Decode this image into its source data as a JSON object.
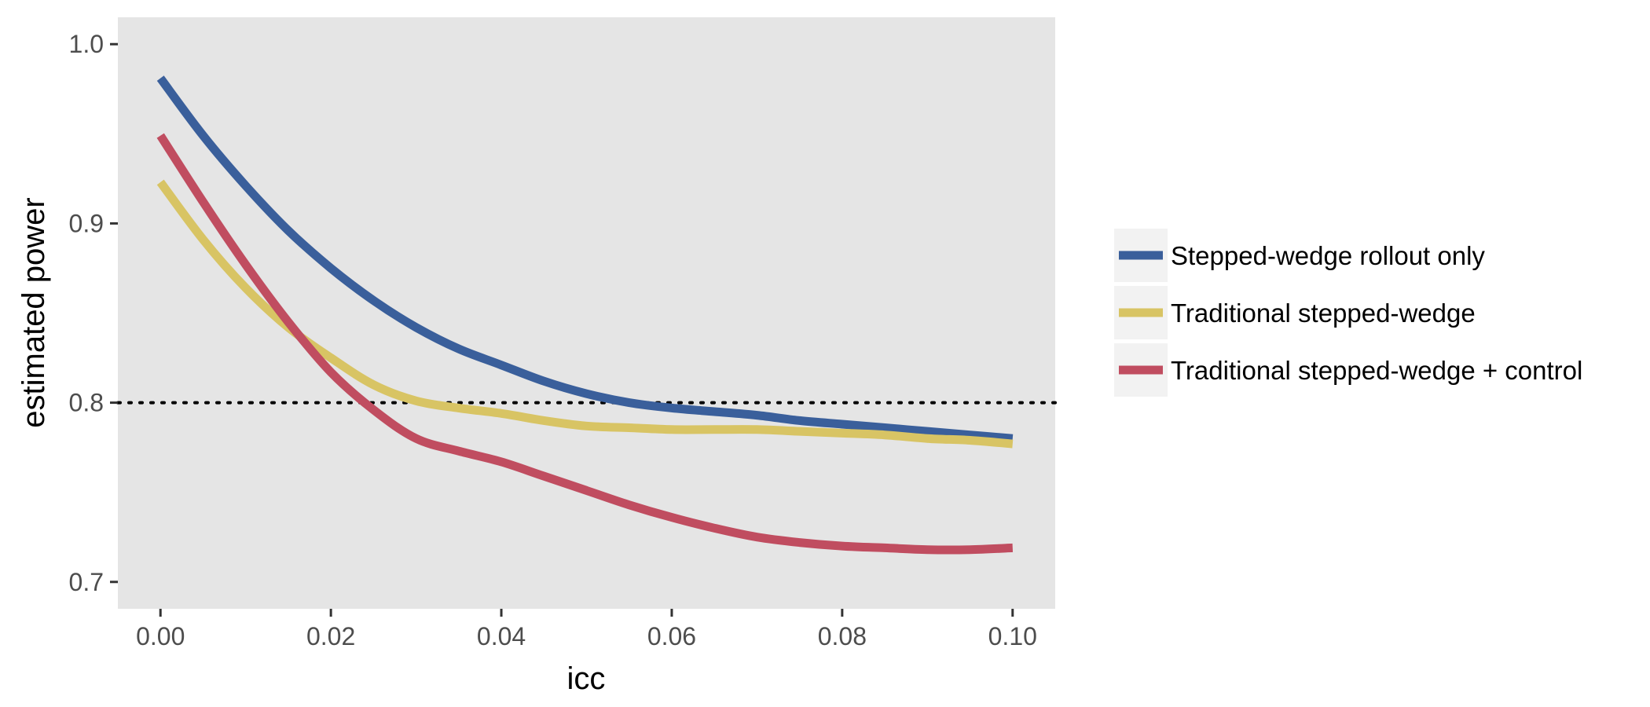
{
  "chart_data": {
    "type": "line",
    "title": "",
    "xlabel": "icc",
    "ylabel": "estimated power",
    "xlim": [
      -0.005,
      0.105
    ],
    "ylim": [
      0.685,
      1.015
    ],
    "x_ticks": [
      0.0,
      0.02,
      0.04,
      0.06,
      0.08,
      0.1
    ],
    "x_tick_labels": [
      "0.00",
      "0.02",
      "0.04",
      "0.06",
      "0.08",
      "0.10"
    ],
    "y_ticks": [
      0.7,
      0.8,
      0.9,
      1.0
    ],
    "y_tick_labels": [
      "0.7",
      "0.8",
      "0.9",
      "1.0"
    ],
    "grid": false,
    "panel_background": "#E5E5E5",
    "legend_position": "right",
    "reference_line": {
      "y": 0.8,
      "style": "dotted",
      "color": "#000000"
    },
    "series": [
      {
        "name": "Stepped-wedge rollout only",
        "color": "#3A5F9B",
        "x": [
          0.0,
          0.005,
          0.01,
          0.015,
          0.02,
          0.025,
          0.03,
          0.035,
          0.04,
          0.045,
          0.05,
          0.055,
          0.06,
          0.065,
          0.07,
          0.075,
          0.08,
          0.085,
          0.09,
          0.095,
          0.1
        ],
        "y": [
          0.981,
          0.949,
          0.921,
          0.896,
          0.875,
          0.857,
          0.842,
          0.83,
          0.821,
          0.812,
          0.805,
          0.8,
          0.797,
          0.795,
          0.793,
          0.79,
          0.788,
          0.786,
          0.784,
          0.782,
          0.78
        ]
      },
      {
        "name": "Traditional stepped-wedge",
        "color": "#D8C464",
        "x": [
          0.0,
          0.005,
          0.01,
          0.015,
          0.02,
          0.025,
          0.03,
          0.035,
          0.04,
          0.045,
          0.05,
          0.055,
          0.06,
          0.065,
          0.07,
          0.075,
          0.08,
          0.085,
          0.09,
          0.095,
          0.1
        ],
        "y": [
          0.923,
          0.891,
          0.864,
          0.842,
          0.825,
          0.81,
          0.801,
          0.797,
          0.794,
          0.79,
          0.787,
          0.786,
          0.785,
          0.785,
          0.785,
          0.784,
          0.783,
          0.782,
          0.78,
          0.779,
          0.777
        ]
      },
      {
        "name": "Traditional stepped-wedge + control",
        "color": "#C04D60",
        "x": [
          0.0,
          0.005,
          0.01,
          0.015,
          0.02,
          0.025,
          0.03,
          0.035,
          0.04,
          0.045,
          0.05,
          0.055,
          0.06,
          0.065,
          0.07,
          0.075,
          0.08,
          0.085,
          0.09,
          0.095,
          0.1
        ],
        "y": [
          0.949,
          0.912,
          0.877,
          0.845,
          0.817,
          0.796,
          0.78,
          0.773,
          0.767,
          0.759,
          0.751,
          0.743,
          0.736,
          0.73,
          0.725,
          0.722,
          0.72,
          0.719,
          0.718,
          0.718,
          0.719
        ]
      }
    ]
  }
}
